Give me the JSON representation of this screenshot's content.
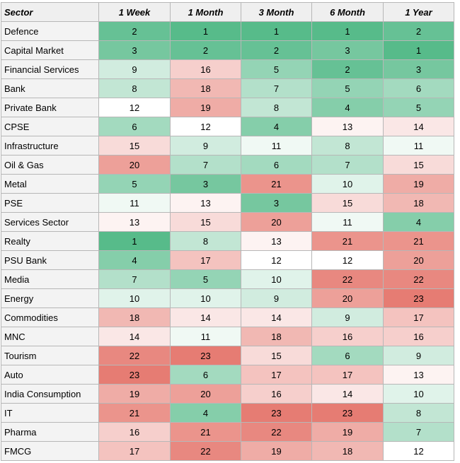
{
  "table": {
    "headers": [
      "Sector",
      "1 Week",
      "1 Month",
      "3 Month",
      "6 Month",
      "1 Year"
    ],
    "rows": [
      {
        "sector": "Defence",
        "ranks": [
          2,
          1,
          1,
          1,
          2
        ]
      },
      {
        "sector": "Capital Market",
        "ranks": [
          3,
          2,
          2,
          3,
          1
        ]
      },
      {
        "sector": "Financial Services",
        "ranks": [
          9,
          16,
          5,
          2,
          3
        ]
      },
      {
        "sector": "Bank",
        "ranks": [
          8,
          18,
          7,
          5,
          6
        ]
      },
      {
        "sector": "Private Bank",
        "ranks": [
          12,
          19,
          8,
          4,
          5
        ]
      },
      {
        "sector": "CPSE",
        "ranks": [
          6,
          12,
          4,
          13,
          14
        ]
      },
      {
        "sector": "Infrastructure",
        "ranks": [
          15,
          9,
          11,
          8,
          11
        ]
      },
      {
        "sector": "Oil & Gas",
        "ranks": [
          20,
          7,
          6,
          7,
          15
        ]
      },
      {
        "sector": "Metal",
        "ranks": [
          5,
          3,
          21,
          10,
          19
        ]
      },
      {
        "sector": "PSE",
        "ranks": [
          11,
          13,
          3,
          15,
          18
        ]
      },
      {
        "sector": "Services Sector",
        "ranks": [
          13,
          15,
          20,
          11,
          4
        ]
      },
      {
        "sector": "Realty",
        "ranks": [
          1,
          8,
          13,
          21,
          21
        ]
      },
      {
        "sector": "PSU Bank",
        "ranks": [
          4,
          17,
          12,
          12,
          20
        ]
      },
      {
        "sector": "Media",
        "ranks": [
          7,
          5,
          10,
          22,
          22
        ]
      },
      {
        "sector": "Energy",
        "ranks": [
          10,
          10,
          9,
          20,
          23
        ]
      },
      {
        "sector": "Commodities",
        "ranks": [
          18,
          14,
          14,
          9,
          17
        ]
      },
      {
        "sector": "MNC",
        "ranks": [
          14,
          11,
          18,
          16,
          16
        ]
      },
      {
        "sector": "Tourism",
        "ranks": [
          22,
          23,
          15,
          6,
          9
        ]
      },
      {
        "sector": "Auto",
        "ranks": [
          23,
          6,
          17,
          17,
          13
        ]
      },
      {
        "sector": "India Consumption",
        "ranks": [
          19,
          20,
          16,
          14,
          10
        ]
      },
      {
        "sector": "IT",
        "ranks": [
          21,
          4,
          23,
          23,
          8
        ]
      },
      {
        "sector": "Pharma",
        "ranks": [
          16,
          21,
          22,
          19,
          7
        ]
      },
      {
        "sector": "FMCG",
        "ranks": [
          17,
          22,
          19,
          18,
          12
        ]
      }
    ]
  },
  "colors": {
    "best": "#57bb8a",
    "mid": "#ffffff",
    "worst": "#e67c73",
    "header_bg": "#efefef",
    "sector_bg": "#f3f3f3",
    "border": "#b7b7b7"
  },
  "scale": {
    "min": 1,
    "mid": 12,
    "max": 23
  }
}
